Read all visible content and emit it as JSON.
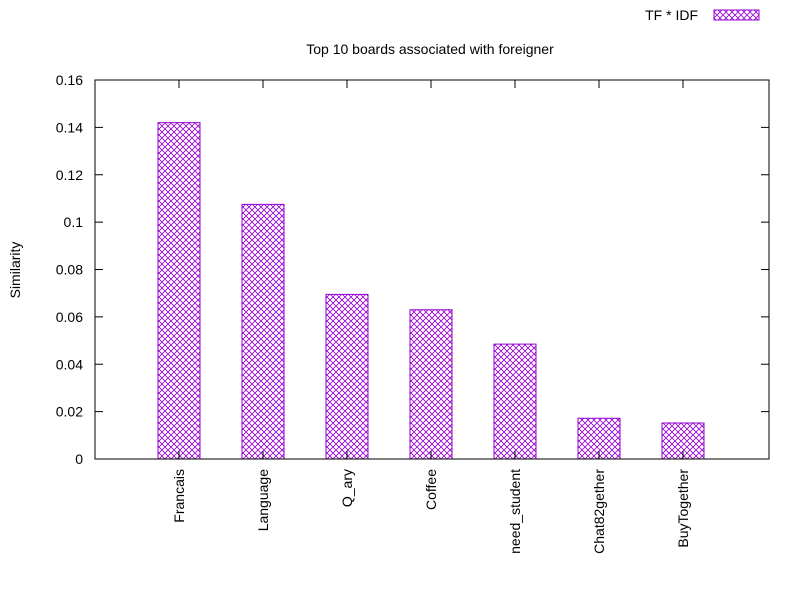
{
  "chart_data": {
    "type": "bar",
    "title": "Top 10 boards associated with foreigner",
    "xlabel": "",
    "ylabel": "Similarity",
    "ylim": [
      0,
      0.16
    ],
    "yticks": [
      "0",
      "0.02",
      "0.04",
      "0.06",
      "0.08",
      "0.1",
      "0.12",
      "0.14",
      "0.16"
    ],
    "categories": [
      "Francais",
      "Language",
      "Q_ary",
      "Coffee",
      "need_student",
      "Chat82gether",
      "BuyTogether"
    ],
    "series": [
      {
        "name": "TF * IDF",
        "color": "#9400d3",
        "values": [
          0.142,
          0.1075,
          0.0695,
          0.063,
          0.0485,
          0.0172,
          0.0152
        ]
      }
    ],
    "legend_position": "top-right",
    "grid": false
  }
}
